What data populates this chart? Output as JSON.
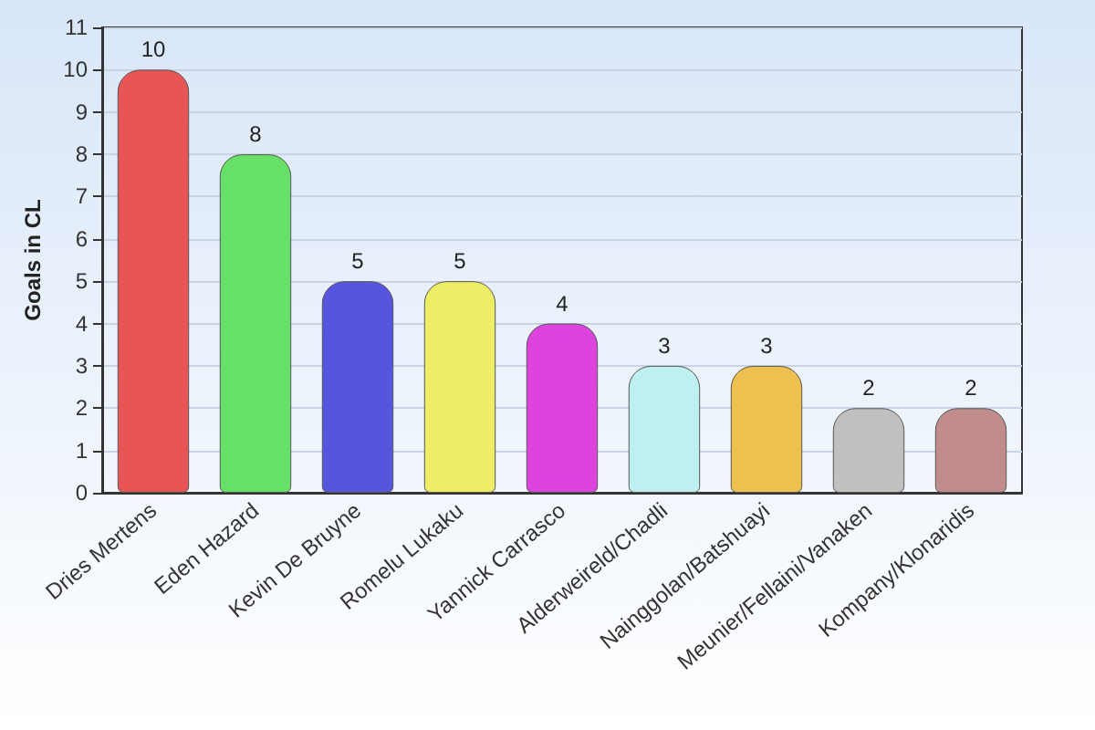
{
  "chart_data": {
    "type": "bar",
    "ylabel": "Goals in CL",
    "categories": [
      "Dries Mertens",
      "Eden Hazard",
      "Kevin De Bruyne",
      "Romelu Lukaku",
      "Yannick Carrasco",
      "Alderweireld/Chadli",
      "Nainggolan/Batshuayi",
      "Meunier/Fellaini/Vanaken",
      "Kompany/Klonaridis"
    ],
    "values": [
      10,
      8,
      5,
      5,
      4,
      3,
      3,
      2,
      2
    ],
    "colors": [
      "#e85555",
      "#66e066",
      "#5555dd",
      "#eeee66",
      "#dd44dd",
      "#bff0f0",
      "#eec050",
      "#c0c0c0",
      "#c08c8c"
    ],
    "ylim": [
      0,
      11
    ],
    "yticks": [
      0,
      1,
      2,
      3,
      4,
      5,
      6,
      7,
      8,
      9,
      10,
      11
    ],
    "grid": "y",
    "data_labels": true
  }
}
